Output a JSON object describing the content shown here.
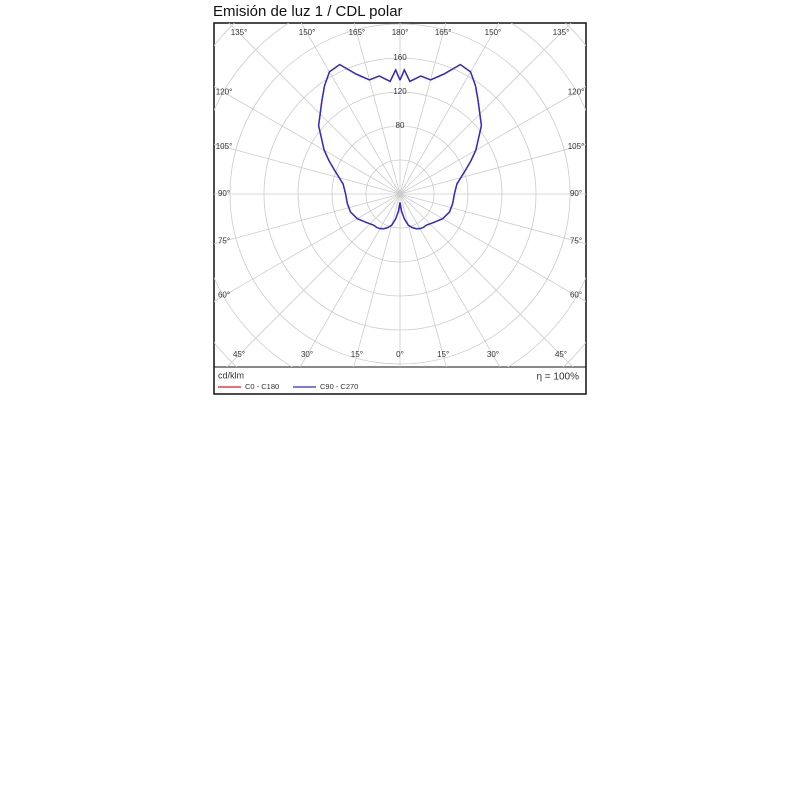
{
  "chart_data": {
    "type": "polar",
    "title": "Emisión de luz 1 / CDL polar",
    "unit": "cd/klm",
    "efficiency": "η = 100%",
    "angles": [
      0,
      5,
      10,
      15,
      20,
      25,
      30,
      35,
      40,
      50,
      60,
      70,
      80,
      90,
      100,
      105,
      110,
      115,
      120,
      130,
      140,
      145,
      150,
      155,
      160,
      165,
      170,
      175,
      178,
      180
    ],
    "series": [
      {
        "name": "C0 - C180",
        "color": "#e3191f",
        "values": [
          10,
          20,
          30,
          38,
          42,
          45,
          47,
          48,
          48,
          52,
          58,
          62,
          63,
          64,
          68,
          74,
          82,
          92,
          103,
          125,
          143,
          155,
          166,
          168,
          150,
          139,
          141,
          133,
          146,
          134
        ]
      },
      {
        "name": "C90 - C270",
        "color": "#2b2bd3",
        "values": [
          10,
          20,
          30,
          38,
          42,
          45,
          47,
          48,
          48,
          52,
          58,
          62,
          63,
          64,
          68,
          74,
          82,
          92,
          103,
          125,
          143,
          155,
          166,
          168,
          150,
          139,
          141,
          133,
          146,
          134
        ]
      }
    ],
    "rlim": [
      0,
      200
    ],
    "rticks": [
      80,
      120,
      160
    ],
    "rgrid": [
      40,
      80,
      120,
      160,
      200,
      240,
      280
    ],
    "angle_ticks": [
      {
        "value": 0,
        "label": "0°"
      },
      {
        "value": 15,
        "label": "15°"
      },
      {
        "value": 30,
        "label": "30°"
      },
      {
        "value": 45,
        "label": "45°"
      },
      {
        "value": 60,
        "label": "60°"
      },
      {
        "value": 75,
        "label": "75°"
      },
      {
        "value": 90,
        "label": "90°"
      },
      {
        "value": 105,
        "label": "105°"
      },
      {
        "value": 120,
        "label": "120°"
      },
      {
        "value": 135,
        "label": "135°"
      },
      {
        "value": 150,
        "label": "150°"
      },
      {
        "value": 165,
        "label": "165°"
      },
      {
        "value": 180,
        "label": "180°"
      }
    ]
  }
}
